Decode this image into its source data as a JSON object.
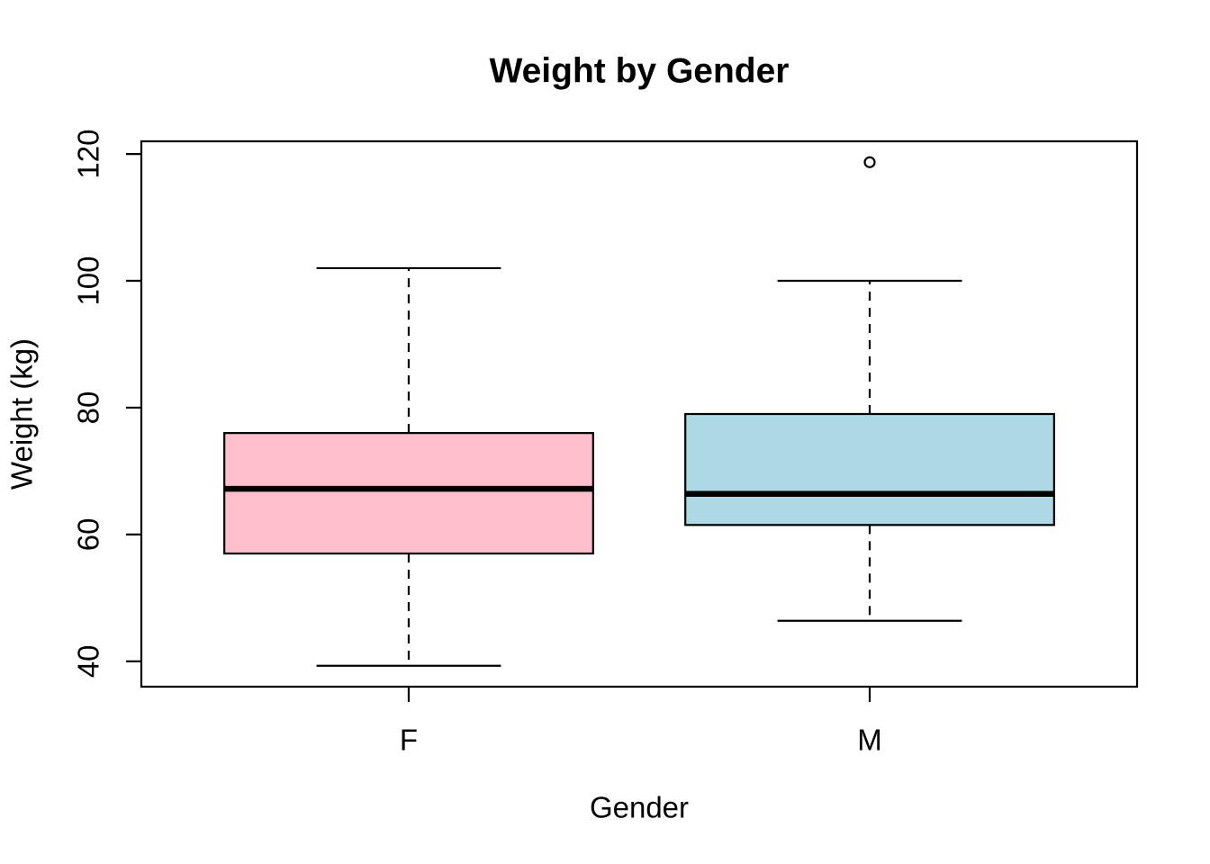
{
  "chart_data": {
    "type": "boxplot",
    "title": "Weight by Gender",
    "xlabel": "Gender",
    "ylabel": "Weight (kg)",
    "categories": [
      "F",
      "M"
    ],
    "ylim": [
      36,
      122
    ],
    "yticks": [
      40,
      60,
      80,
      100,
      120
    ],
    "grid": false,
    "legend": "none",
    "box_width_rel": 0.8,
    "frame_color": "#000000",
    "background_color": "#FFFFFF",
    "series": [
      {
        "name": "F",
        "x": 1,
        "fill_color": "#FFC0CB",
        "stats": {
          "lower_whisker": 39.3,
          "q1": 57,
          "median": 67.2,
          "q3": 76,
          "upper_whisker": 102
        },
        "outliers": []
      },
      {
        "name": "M",
        "x": 2,
        "fill_color": "#ADD8E6",
        "stats": {
          "lower_whisker": 46.4,
          "q1": 61.5,
          "median": 66.4,
          "q3": 79,
          "upper_whisker": 100
        },
        "outliers": [
          118.7
        ]
      }
    ]
  }
}
